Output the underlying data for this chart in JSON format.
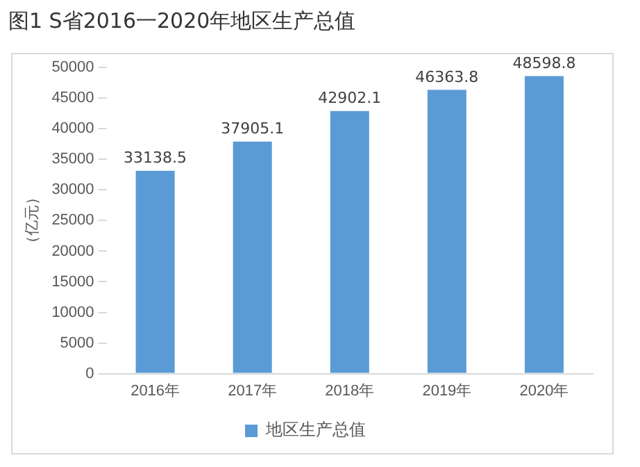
{
  "chart_data": {
    "type": "bar",
    "title": "图1  S省2016一2020年地区生产总值",
    "ylabel": "（亿元）",
    "categories": [
      "2016年",
      "2017年",
      "2018年",
      "2019年",
      "2020年"
    ],
    "series": [
      {
        "name": "地区生产总值",
        "color": "#5b9bd5",
        "values": [
          33138.5,
          37905.1,
          42902.1,
          46363.8,
          48598.8
        ]
      }
    ],
    "ylim": [
      0,
      50000
    ],
    "yticks": [
      0,
      5000,
      10000,
      15000,
      20000,
      25000,
      30000,
      35000,
      40000,
      45000,
      50000
    ],
    "data_labels": true,
    "grid": false,
    "legend": "bottom"
  }
}
